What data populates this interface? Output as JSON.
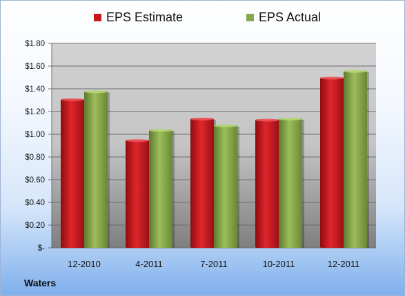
{
  "company": "Waters",
  "chart_data": {
    "type": "bar",
    "categories": [
      "12-2010",
      "4-2011",
      "7-2011",
      "10-2011",
      "12-2011"
    ],
    "series": [
      {
        "name": "EPS Estimate",
        "values": [
          1.31,
          0.95,
          1.14,
          1.13,
          1.5
        ],
        "color": "#c8171e"
      },
      {
        "name": "EPS Actual",
        "values": [
          1.38,
          1.04,
          1.08,
          1.14,
          1.56
        ],
        "color": "#87a84a"
      }
    ],
    "ylim": [
      0,
      1.8
    ],
    "yticks": [
      0,
      0.2,
      0.4,
      0.6,
      0.8,
      1.0,
      1.2,
      1.4,
      1.6,
      1.8
    ],
    "ytick_labels": [
      "$-",
      "$0.20",
      "$0.40",
      "$0.60",
      "$0.80",
      "$1.00",
      "$1.20",
      "$1.40",
      "$1.60",
      "$1.80"
    ],
    "grid": true,
    "legend_position": "top-center"
  }
}
